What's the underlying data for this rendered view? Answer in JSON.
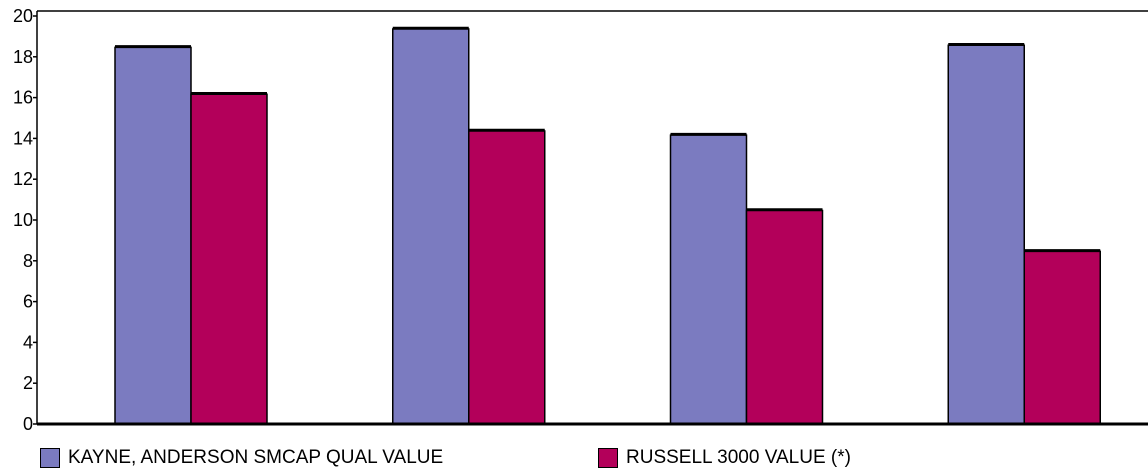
{
  "chart_data": {
    "type": "bar",
    "categories": [
      "",
      "",
      "",
      ""
    ],
    "series": [
      {
        "name": "KAYNE, ANDERSON SMCAP QUAL VALUE",
        "values": [
          18.5,
          19.4,
          14.2,
          18.6
        ],
        "color": "#7b7bc0"
      },
      {
        "name": "RUSSELL 3000 VALUE (*)",
        "values": [
          16.2,
          14.4,
          10.5,
          8.5
        ],
        "color": "#b3005a"
      }
    ],
    "title": "",
    "xlabel": "",
    "ylabel": "",
    "ylim": [
      0,
      20
    ],
    "yticks": [
      "0",
      "2",
      "4",
      "6",
      "8",
      "10",
      "12",
      "14",
      "16",
      "18",
      "20"
    ],
    "grid": false,
    "legend_position": "bottom"
  },
  "legend": {
    "items": [
      {
        "label": "KAYNE, ANDERSON SMCAP QUAL VALUE",
        "color": "#7b7bc0"
      },
      {
        "label": "RUSSELL 3000 VALUE (*)",
        "color": "#b3005a"
      }
    ]
  }
}
